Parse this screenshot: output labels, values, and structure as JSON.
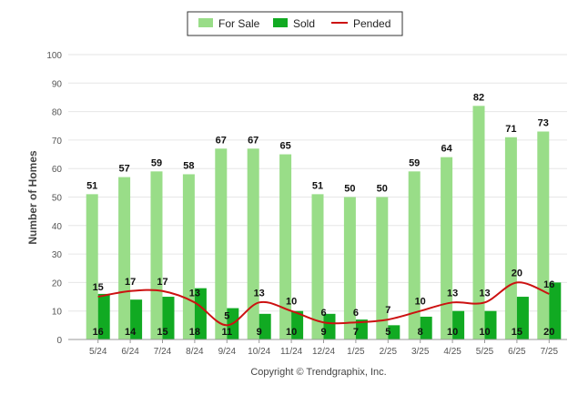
{
  "chart_data": {
    "type": "bar",
    "categories": [
      "5/24",
      "6/24",
      "7/24",
      "8/24",
      "9/24",
      "10/24",
      "11/24",
      "12/24",
      "1/25",
      "2/25",
      "3/25",
      "4/25",
      "5/25",
      "6/25",
      "7/25"
    ],
    "series": [
      {
        "name": "For Sale",
        "type": "bar",
        "color": "#99dd88",
        "values": [
          51,
          57,
          59,
          58,
          67,
          67,
          65,
          51,
          50,
          50,
          59,
          64,
          82,
          71,
          73
        ]
      },
      {
        "name": "Sold",
        "type": "bar",
        "color": "#11aa22",
        "values": [
          16,
          14,
          15,
          18,
          11,
          9,
          10,
          9,
          7,
          5,
          8,
          10,
          10,
          15,
          20
        ]
      },
      {
        "name": "Pended",
        "type": "line",
        "color": "#cc1111",
        "values": [
          15,
          17,
          17,
          13,
          5,
          13,
          10,
          6,
          6,
          7,
          10,
          13,
          13,
          20,
          16
        ]
      }
    ],
    "xlabel": "",
    "ylabel": "Number of Homes",
    "ylim": [
      0,
      100
    ],
    "yticks": [
      0,
      10,
      20,
      30,
      40,
      50,
      60,
      70,
      80,
      90,
      100
    ],
    "grid": true,
    "legend_position": "top-center"
  },
  "footer": {
    "copyright": "Copyright © Trendgraphix, Inc."
  }
}
